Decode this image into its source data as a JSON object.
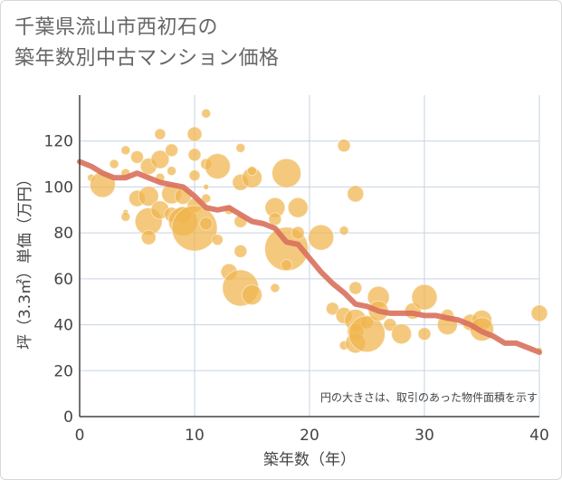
{
  "title": "千葉県流山市西初石の\n築年数別中古マンション価格",
  "chart_data": {
    "type": "scatter",
    "title": "千葉県流山市西初石の築年数別中古マンション価格",
    "xlabel": "築年数（年）",
    "ylabel": "坪（3.3㎡）単価（万円）",
    "xlim": [
      0,
      40
    ],
    "ylim": [
      0,
      140
    ],
    "x_ticks": [
      0,
      10,
      20,
      30,
      40
    ],
    "y_ticks": [
      0,
      20,
      40,
      60,
      80,
      100,
      120
    ],
    "grid": true,
    "annotation": "円の大きさは、取引のあった物件面積を示す",
    "colors": {
      "bubble": "#f0b44c",
      "trend": "#d9705c",
      "grid": "#c7d3e2",
      "axis": "#444444"
    },
    "series": [
      {
        "kind": "bubble",
        "points": [
          {
            "x": 1,
            "y": 104,
            "s": 4
          },
          {
            "x": 2,
            "y": 101,
            "s": 14
          },
          {
            "x": 3,
            "y": 110,
            "s": 5
          },
          {
            "x": 4,
            "y": 116,
            "s": 5
          },
          {
            "x": 4,
            "y": 106,
            "s": 5
          },
          {
            "x": 4,
            "y": 89,
            "s": 3
          },
          {
            "x": 4,
            "y": 87,
            "s": 5
          },
          {
            "x": 5,
            "y": 95,
            "s": 9
          },
          {
            "x": 5,
            "y": 113,
            "s": 7
          },
          {
            "x": 6,
            "y": 96,
            "s": 11
          },
          {
            "x": 6,
            "y": 109,
            "s": 9
          },
          {
            "x": 6,
            "y": 85,
            "s": 15
          },
          {
            "x": 6,
            "y": 78,
            "s": 8
          },
          {
            "x": 7,
            "y": 123,
            "s": 6
          },
          {
            "x": 7,
            "y": 112,
            "s": 10
          },
          {
            "x": 7,
            "y": 90,
            "s": 10
          },
          {
            "x": 7,
            "y": 104,
            "s": 5
          },
          {
            "x": 8,
            "y": 116,
            "s": 7
          },
          {
            "x": 8,
            "y": 107,
            "s": 5
          },
          {
            "x": 8,
            "y": 97,
            "s": 11
          },
          {
            "x": 8,
            "y": 88,
            "s": 8
          },
          {
            "x": 9,
            "y": 96,
            "s": 9
          },
          {
            "x": 9,
            "y": 88,
            "s": 9
          },
          {
            "x": 9,
            "y": 85,
            "s": 16
          },
          {
            "x": 10,
            "y": 123,
            "s": 8
          },
          {
            "x": 10,
            "y": 114,
            "s": 7
          },
          {
            "x": 10,
            "y": 105,
            "s": 6
          },
          {
            "x": 10,
            "y": 92,
            "s": 8
          },
          {
            "x": 10,
            "y": 82,
            "s": 25
          },
          {
            "x": 11,
            "y": 132,
            "s": 5
          },
          {
            "x": 11,
            "y": 110,
            "s": 6
          },
          {
            "x": 11,
            "y": 95,
            "s": 5
          },
          {
            "x": 11,
            "y": 84,
            "s": 7
          },
          {
            "x": 11,
            "y": 100,
            "s": 3
          },
          {
            "x": 12,
            "y": 109,
            "s": 14
          },
          {
            "x": 12,
            "y": 77,
            "s": 6
          },
          {
            "x": 13,
            "y": 63,
            "s": 9
          },
          {
            "x": 13,
            "y": 90,
            "s": 5
          },
          {
            "x": 14,
            "y": 117,
            "s": 5
          },
          {
            "x": 14,
            "y": 102,
            "s": 9
          },
          {
            "x": 14,
            "y": 85,
            "s": 7
          },
          {
            "x": 14,
            "y": 72,
            "s": 7
          },
          {
            "x": 14,
            "y": 56,
            "s": 20
          },
          {
            "x": 15,
            "y": 104,
            "s": 11
          },
          {
            "x": 15,
            "y": 107,
            "s": 5
          },
          {
            "x": 15,
            "y": 53,
            "s": 11
          },
          {
            "x": 17,
            "y": 56,
            "s": 5
          },
          {
            "x": 17,
            "y": 91,
            "s": 11
          },
          {
            "x": 17,
            "y": 86,
            "s": 7
          },
          {
            "x": 18,
            "y": 106,
            "s": 16
          },
          {
            "x": 18,
            "y": 73,
            "s": 24
          },
          {
            "x": 18,
            "y": 66,
            "s": 6
          },
          {
            "x": 19,
            "y": 91,
            "s": 11
          },
          {
            "x": 19,
            "y": 80,
            "s": 7
          },
          {
            "x": 21,
            "y": 78,
            "s": 14
          },
          {
            "x": 22,
            "y": 47,
            "s": 7
          },
          {
            "x": 23,
            "y": 118,
            "s": 7
          },
          {
            "x": 23,
            "y": 81,
            "s": 5
          },
          {
            "x": 23,
            "y": 44,
            "s": 9
          },
          {
            "x": 23,
            "y": 31,
            "s": 5
          },
          {
            "x": 24,
            "y": 97,
            "s": 9
          },
          {
            "x": 24,
            "y": 56,
            "s": 7
          },
          {
            "x": 24,
            "y": 42,
            "s": 12
          },
          {
            "x": 24,
            "y": 37,
            "s": 9
          },
          {
            "x": 24,
            "y": 32,
            "s": 11
          },
          {
            "x": 25,
            "y": 41,
            "s": 7
          },
          {
            "x": 25,
            "y": 36,
            "s": 20
          },
          {
            "x": 26,
            "y": 52,
            "s": 12
          },
          {
            "x": 26,
            "y": 46,
            "s": 11
          },
          {
            "x": 27,
            "y": 40,
            "s": 7
          },
          {
            "x": 28,
            "y": 36,
            "s": 11
          },
          {
            "x": 29,
            "y": 46,
            "s": 9
          },
          {
            "x": 30,
            "y": 52,
            "s": 14
          },
          {
            "x": 30,
            "y": 36,
            "s": 7
          },
          {
            "x": 32,
            "y": 44,
            "s": 7
          },
          {
            "x": 32,
            "y": 40,
            "s": 11
          },
          {
            "x": 34,
            "y": 41,
            "s": 9
          },
          {
            "x": 35,
            "y": 42,
            "s": 11
          },
          {
            "x": 35,
            "y": 38,
            "s": 13
          },
          {
            "x": 40,
            "y": 45,
            "s": 9
          },
          {
            "x": 40,
            "y": 29,
            "s": 3
          }
        ]
      },
      {
        "kind": "line",
        "x": [
          0,
          1,
          2,
          3,
          4,
          5,
          6,
          7,
          8,
          9,
          10,
          11,
          12,
          13,
          14,
          15,
          16,
          17,
          18,
          19,
          20,
          21,
          22,
          23,
          24,
          25,
          26,
          27,
          28,
          29,
          30,
          31,
          32,
          33,
          34,
          35,
          36,
          37,
          38,
          39,
          40
        ],
        "y": [
          111,
          109,
          106,
          104,
          104,
          106,
          104,
          102,
          101,
          100,
          96,
          91,
          90,
          91,
          88,
          85,
          84,
          82,
          76,
          75,
          69,
          63,
          58,
          54,
          49,
          48,
          46,
          45,
          45,
          45,
          44,
          44,
          43,
          42,
          40,
          37,
          35,
          32,
          32,
          30,
          28
        ]
      }
    ]
  }
}
